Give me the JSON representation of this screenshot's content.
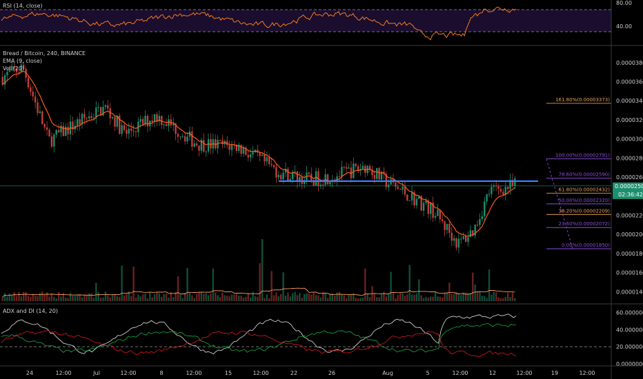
{
  "rsi": {
    "title": "RSI (14, close)",
    "levels": [
      80,
      40
    ],
    "level_labels": [
      "80.00",
      "40.00"
    ],
    "ylim": [
      20,
      85
    ]
  },
  "main": {
    "symbol_line": "Bread / Bitcoin, 240, BINANCE",
    "ema_label": "EMA (9, close)",
    "vol_label": "Vol (20)",
    "price_ticks": [
      3.8e-05,
      3.6e-05,
      3.4e-05,
      3.2e-05,
      3e-05,
      2.8e-05,
      2.6e-05,
      2.4e-05,
      2.2e-05,
      2e-05,
      1.8e-05,
      1.6e-05,
      1.4e-05
    ],
    "price_tick_labels": [
      "0.00003800",
      "0.00003600",
      "0.00003400",
      "0.00003200",
      "0.00003000",
      "0.00002800",
      "0.00002600",
      "0.00002400",
      "0.00002200",
      "0.00002000",
      "0.00001800",
      "0.00001600",
      "0.00001400"
    ],
    "ylim": [
      1.28e-05,
      3.95e-05
    ],
    "last_price_label": "0.00002508",
    "countdown_label": "02:36:42",
    "support_level": 2.558e-05,
    "fib": [
      {
        "label": "161.80%(0.00003373)",
        "price": 3.373e-05,
        "color": "#e8a25c"
      },
      {
        "label": "100.00%(0.00002791)",
        "price": 2.791e-05,
        "color": "#8e4ee0"
      },
      {
        "label": "78.60%(0.00002590)",
        "price": 2.59e-05,
        "color": "#8e4ee0"
      },
      {
        "label": "61.80%(0.00002432)",
        "price": 2.432e-05,
        "color": "#e8a25c"
      },
      {
        "label": "50.00%(0.00002320)",
        "price": 2.32e-05,
        "color": "#8e4ee0"
      },
      {
        "label": "38.20%(0.00002209)",
        "price": 2.209e-05,
        "color": "#e8a25c"
      },
      {
        "label": "23.60%(0.00002072)",
        "price": 2.072e-05,
        "color": "#8e4ee0"
      },
      {
        "label": "0.00%(0.00001850)",
        "price": 1.85e-05,
        "color": "#8e4ee0"
      }
    ]
  },
  "adx": {
    "title": "ADX and DI (14, 20)",
    "ticks": [
      60,
      40,
      20,
      0
    ],
    "tick_labels": [
      "60.00000000",
      "40.00000000",
      "20.00000000",
      "0.00000000"
    ],
    "threshold": 20,
    "ylim": [
      0,
      66
    ]
  },
  "time_axis": {
    "labels": [
      "24",
      "12:00",
      "Jul",
      "12:00",
      "8",
      "12:00",
      "15",
      "12:00",
      "22",
      "26",
      "Aug",
      "5",
      "12:00",
      "12",
      "12:00",
      "19",
      "12:00",
      "12:00"
    ]
  },
  "colors": {
    "up": "#1e8f6e",
    "down": "#c2403a",
    "ema": "#ff5b1a",
    "support": "#3d7dff",
    "rsi_line": "#f57c1f",
    "rsi_band": "#1b0d2e",
    "vol_ma": "#ff9b5a",
    "adx": "#cfcfcf",
    "di_plus": "#169c3a",
    "di_minus": "#c9151e"
  },
  "chart_data": {
    "type": "candlestick",
    "series": [
      {
        "name": "Bread / Bitcoin",
        "description": "4h candles, approximate trajectory",
        "path_x": [
          0,
          0.04,
          0.09,
          0.14,
          0.2,
          0.24,
          0.3,
          0.38,
          0.46,
          0.54,
          0.6,
          0.66,
          0.71,
          0.74,
          0.79,
          0.84,
          0.89,
          0.92,
          0.95,
          1.0
        ],
        "path_price": [
          3.65e-05,
          3.75e-05,
          2.98e-05,
          3.15e-05,
          3.33e-05,
          3.05e-05,
          3.25e-05,
          2.95e-05,
          2.92e-05,
          2.65e-05,
          2.57e-05,
          2.63e-05,
          2.72e-05,
          2.58e-05,
          2.42e-05,
          2.25e-05,
          1.9e-05,
          2.05e-05,
          2.45e-05,
          2.51e-05
        ]
      },
      {
        "name": "EMA (9, close)"
      },
      {
        "name": "Vol (20)"
      }
    ]
  }
}
